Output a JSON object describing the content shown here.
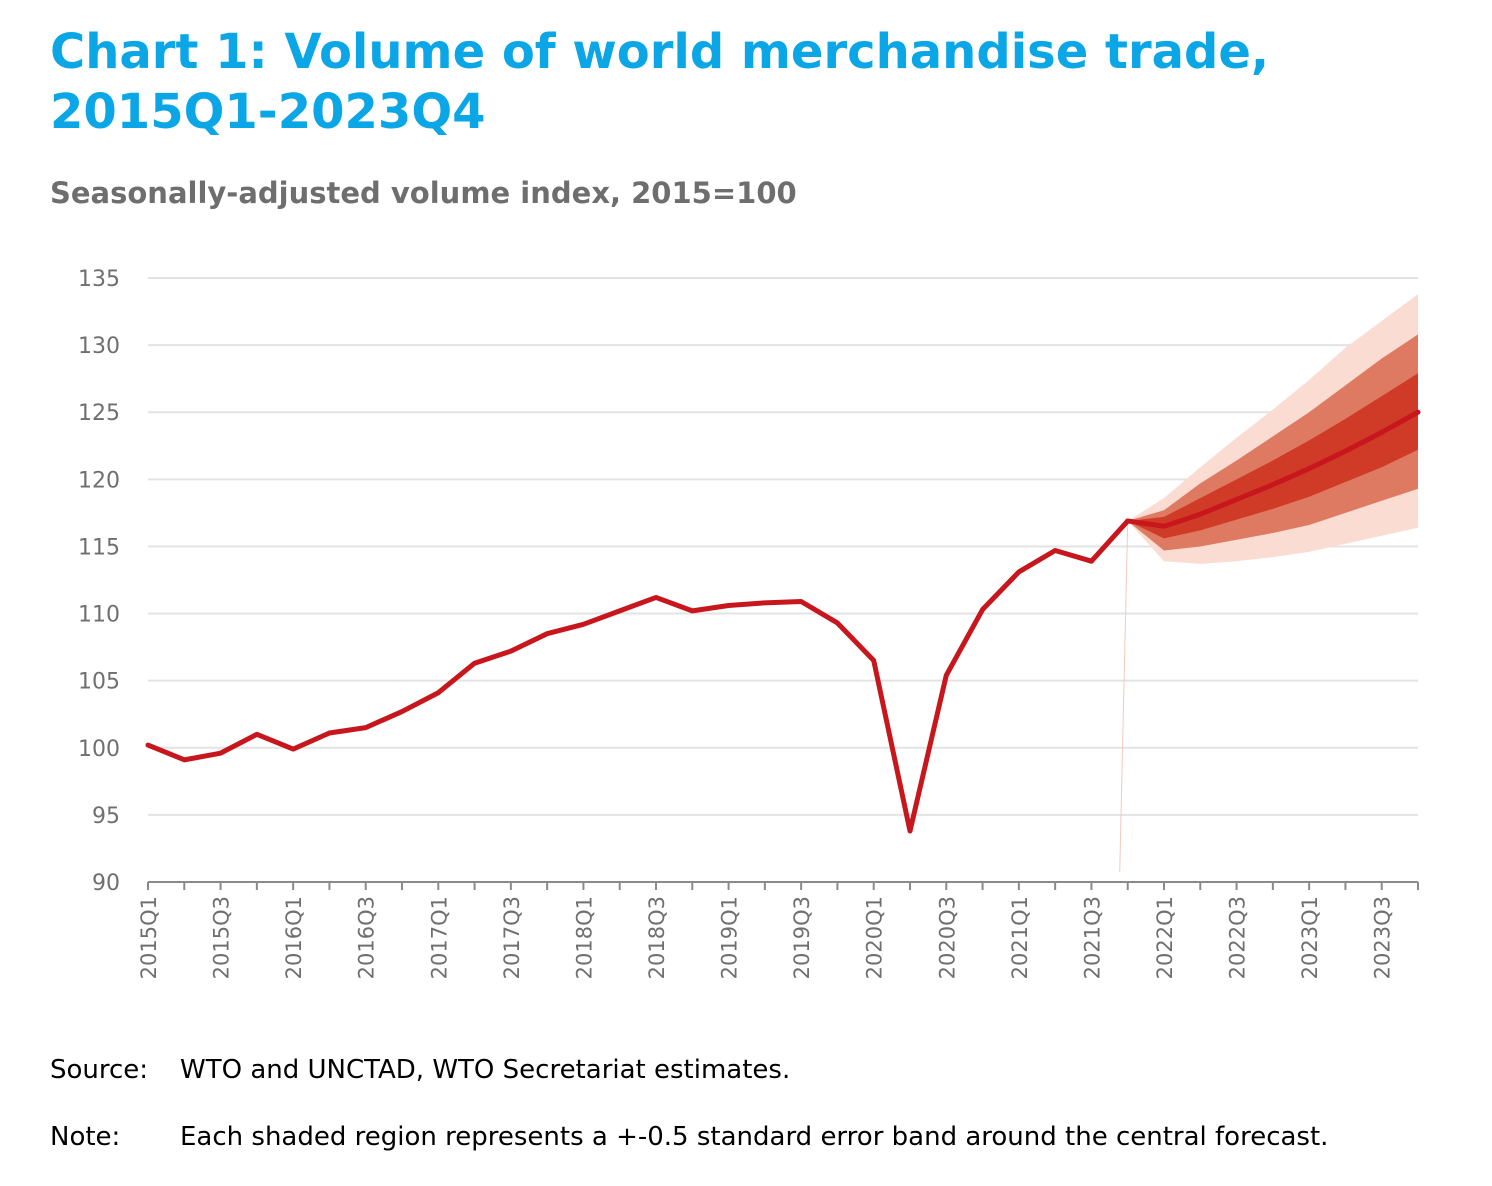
{
  "title": "Chart 1: Volume of world merchandise trade, 2015Q1-2023Q4",
  "subtitle": "Seasonally-adjusted volume index, 2015=100",
  "source": {
    "label": "Source:",
    "text": "WTO and UNCTAD, WTO Secretariat estimates."
  },
  "note": {
    "label": "Note:",
    "text": "Each shaded region represents a +-0.5 standard error band around the central forecast."
  },
  "colors": {
    "title": "#0aa6e6",
    "line": "#c8161d",
    "band_inner": "#cf3b27",
    "band_mid": "#de7a62",
    "band_outer": "#fbdcd2",
    "grid": "#e3e3e3"
  },
  "chart_data": {
    "type": "line",
    "categories": [
      "2015Q1",
      "2015Q2",
      "2015Q3",
      "2015Q4",
      "2016Q1",
      "2016Q2",
      "2016Q3",
      "2016Q4",
      "2017Q1",
      "2017Q2",
      "2017Q3",
      "2017Q4",
      "2018Q1",
      "2018Q2",
      "2018Q3",
      "2018Q4",
      "2019Q1",
      "2019Q2",
      "2019Q3",
      "2019Q4",
      "2020Q1",
      "2020Q2",
      "2020Q3",
      "2020Q4",
      "2021Q1",
      "2021Q2",
      "2021Q3",
      "2021Q4",
      "2022Q1",
      "2022Q2",
      "2022Q3",
      "2022Q4",
      "2023Q1",
      "2023Q2",
      "2023Q3",
      "2023Q4"
    ],
    "tick_labels": [
      "2015Q1",
      "2015Q3",
      "2016Q1",
      "2016Q3",
      "2017Q1",
      "2017Q3",
      "2018Q1",
      "2018Q3",
      "2019Q1",
      "2019Q3",
      "2020Q1",
      "2020Q3",
      "2021Q1",
      "2021Q3",
      "2022Q1",
      "2022Q3",
      "2023Q1",
      "2023Q3"
    ],
    "ylim": [
      90,
      135
    ],
    "yticks": [
      90,
      95,
      100,
      105,
      110,
      115,
      120,
      125,
      130,
      135
    ],
    "grid": true,
    "actual": [
      100.2,
      99.1,
      99.6,
      101.0,
      99.9,
      101.1,
      101.5,
      102.7,
      104.1,
      106.3,
      107.2,
      108.5,
      109.2,
      110.2,
      111.2,
      110.2,
      110.6,
      110.8,
      110.9,
      109.3,
      106.5,
      93.8,
      105.4,
      110.3,
      113.1,
      114.7,
      113.9,
      116.9
    ],
    "forecast": {
      "categories": [
        "2021Q4",
        "2022Q1",
        "2022Q2",
        "2022Q3",
        "2022Q4",
        "2023Q1",
        "2023Q2",
        "2023Q3",
        "2023Q4"
      ],
      "central": [
        116.9,
        116.5,
        117.4,
        118.5,
        119.6,
        120.8,
        122.1,
        123.5,
        125.0
      ],
      "bands": [
        {
          "lower": [
            116.9,
            113.9,
            113.7,
            113.9,
            114.2,
            114.6,
            115.2,
            115.8,
            116.4
          ],
          "upper": [
            116.9,
            118.6,
            120.9,
            123.1,
            125.2,
            127.4,
            129.8,
            131.8,
            133.8
          ]
        },
        {
          "lower": [
            116.9,
            114.7,
            115.0,
            115.5,
            116.0,
            116.6,
            117.5,
            118.4,
            119.3
          ],
          "upper": [
            116.9,
            117.7,
            119.7,
            121.4,
            123.2,
            125.0,
            127.0,
            129.0,
            130.8
          ]
        },
        {
          "lower": [
            116.9,
            115.6,
            116.2,
            117.0,
            117.8,
            118.7,
            119.8,
            120.9,
            122.2
          ],
          "upper": [
            116.9,
            117.2,
            118.6,
            120.0,
            121.4,
            122.9,
            124.5,
            126.2,
            127.9
          ]
        }
      ]
    }
  }
}
